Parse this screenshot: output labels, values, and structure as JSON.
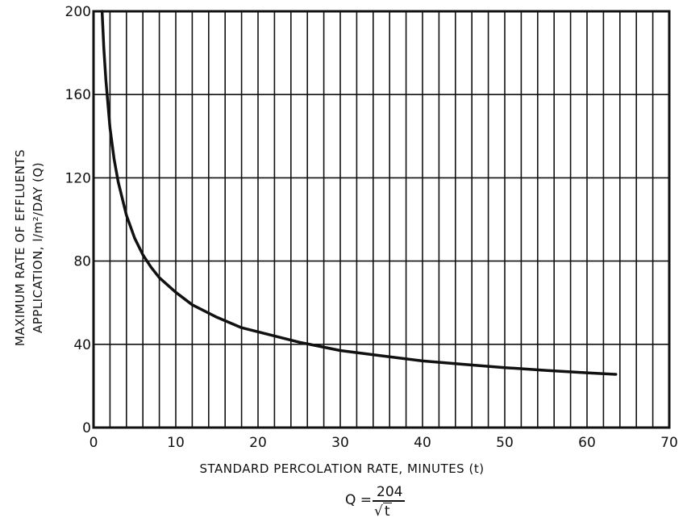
{
  "chart_data": {
    "type": "line",
    "title": "",
    "xlabel": "STANDARD PERCOLATION RATE, MINUTES (t)",
    "ylabel_line1": "MAXIMUM RATE OF EFFLUENTS",
    "ylabel_line2": "APPLICATION, l/m²/DAY (Q)",
    "xlim": [
      0,
      70
    ],
    "ylim": [
      0,
      200
    ],
    "x_ticks": [
      0,
      10,
      20,
      30,
      40,
      50,
      60,
      70
    ],
    "y_ticks": [
      0,
      40,
      80,
      120,
      160,
      200
    ],
    "x_minor_grid_step": 2,
    "y_major_grid_step": 40,
    "grid": true,
    "formula": {
      "lhs": "Q =",
      "numerator": "204",
      "radical": "√",
      "denominator": "t"
    },
    "series": [
      {
        "x": [
          1.04,
          1.25,
          1.5,
          2,
          2.5,
          3,
          4,
          5,
          6,
          7,
          8,
          10,
          12,
          15,
          18,
          20,
          25,
          30,
          35,
          40,
          45,
          50,
          55,
          60,
          63.5
        ],
        "y": [
          200,
          182,
          167,
          144,
          129,
          118,
          102,
          91,
          83,
          77,
          72,
          65,
          59,
          53,
          48,
          46,
          41,
          37,
          34.5,
          32,
          30.4,
          28.8,
          27.5,
          26.3,
          25.6
        ]
      }
    ]
  }
}
